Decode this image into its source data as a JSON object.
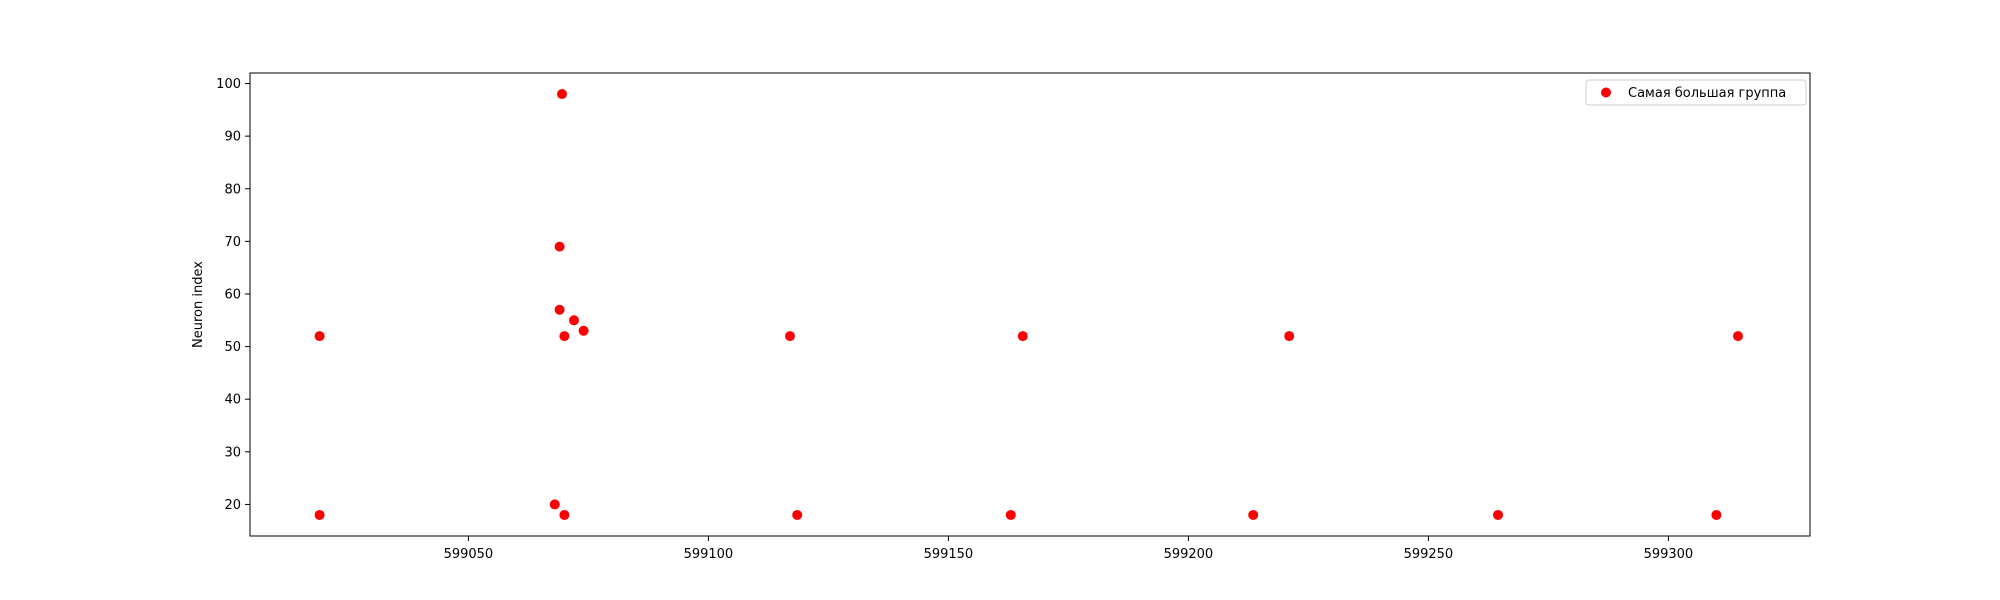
{
  "chart_data": {
    "type": "scatter",
    "title": "",
    "xlabel": "",
    "ylabel": "Neuron index",
    "xlim": [
      599004.5,
      599329.5
    ],
    "ylim": [
      14,
      102
    ],
    "xticks": [
      599050,
      599100,
      599150,
      599200,
      599250,
      599300
    ],
    "yticks": [
      20,
      30,
      40,
      50,
      60,
      70,
      80,
      90,
      100
    ],
    "grid": false,
    "legend_position": "top-right",
    "series": [
      {
        "name": "Самая большая группа",
        "color": "#ff0000",
        "points": [
          {
            "x": 599019,
            "y": 52
          },
          {
            "x": 599019,
            "y": 18
          },
          {
            "x": 599068,
            "y": 20
          },
          {
            "x": 599069,
            "y": 69
          },
          {
            "x": 599069,
            "y": 57
          },
          {
            "x": 599069.5,
            "y": 98
          },
          {
            "x": 599070,
            "y": 52
          },
          {
            "x": 599070,
            "y": 18
          },
          {
            "x": 599072,
            "y": 55
          },
          {
            "x": 599074,
            "y": 53
          },
          {
            "x": 599117,
            "y": 52
          },
          {
            "x": 599118.5,
            "y": 18
          },
          {
            "x": 599163,
            "y": 18
          },
          {
            "x": 599165.5,
            "y": 52
          },
          {
            "x": 599213.5,
            "y": 18
          },
          {
            "x": 599221,
            "y": 52
          },
          {
            "x": 599264.5,
            "y": 18
          },
          {
            "x": 599310,
            "y": 18
          },
          {
            "x": 599314.5,
            "y": 52
          }
        ]
      }
    ]
  }
}
